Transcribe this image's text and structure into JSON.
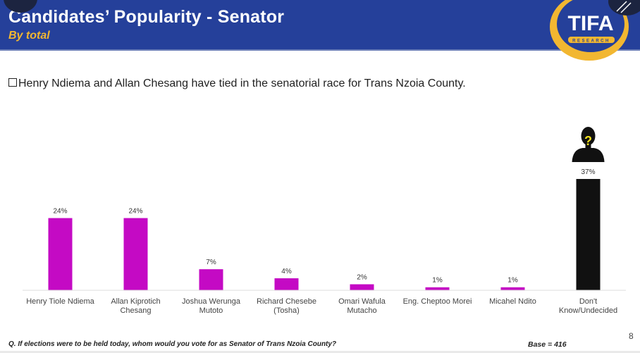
{
  "header": {
    "title": "Candidates’ Popularity - Senator",
    "subtitle": "By total",
    "logo_text": "TIFA",
    "logo_subtext": "RESEARCH",
    "colors": {
      "banner": "#25409a",
      "subtitle": "#f2b731",
      "logo_ring": "#f2b731"
    }
  },
  "headline": "Henry Ndiema and Allan Chesang have tied in the senatorial race for Trans Nzoia County.",
  "footer": {
    "question": "Q. If elections were to be held today, whom would you vote for as Senator of Trans Nzoia County?",
    "base": "Base = 416",
    "page_number": "8"
  },
  "chart_data": {
    "type": "bar",
    "title": "Candidates’ Popularity - Senator",
    "subtitle": "By total",
    "xlabel": "",
    "ylabel": "",
    "ylim": [
      0,
      37
    ],
    "grid": false,
    "categories": [
      [
        "Henry Tiole Ndiema"
      ],
      [
        "Allan Kiprotich",
        "Chesang"
      ],
      [
        "Joshua Werunga",
        "Mutoto"
      ],
      [
        "Richard Chesebe",
        "(Tosha)"
      ],
      [
        "Omari Wafula",
        "Mutacho"
      ],
      [
        "Eng. Cheptoo Morei"
      ],
      [
        "Micahel Ndito"
      ],
      [
        "Don't",
        "Know/Undecided"
      ]
    ],
    "values": [
      24,
      24,
      7,
      4,
      2,
      1,
      1,
      37
    ],
    "data_labels": [
      "24%",
      "24%",
      "7%",
      "4%",
      "2%",
      "1%",
      "1%",
      "37%"
    ],
    "bar_colors": [
      "#c40ac4",
      "#c40ac4",
      "#c40ac4",
      "#c40ac4",
      "#c40ac4",
      "#c40ac4",
      "#c40ac4",
      "#111111"
    ],
    "annotations": [
      {
        "category_index": 7,
        "icon": "unknown-person-icon"
      }
    ]
  }
}
